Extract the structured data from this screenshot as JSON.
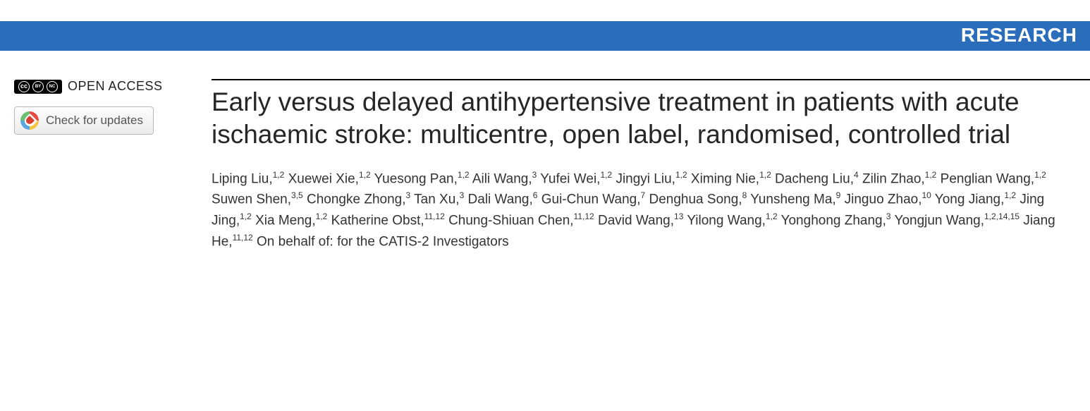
{
  "banner": {
    "label": "RESEARCH",
    "bg": "#2a6ebb",
    "fg": "#ffffff"
  },
  "sidebar": {
    "open_access_label": "OPEN ACCESS",
    "cc_glyphs": [
      "cc",
      "BY",
      "NC"
    ],
    "updates_label": "Check for updates"
  },
  "article": {
    "title": "Early versus delayed antihypertensive treatment in patients with acute ischaemic stroke: multicentre, open label, randomised, controlled trial",
    "authors": [
      {
        "name": "Liping Liu",
        "affil": "1,2"
      },
      {
        "name": "Xuewei Xie",
        "affil": "1,2"
      },
      {
        "name": "Yuesong Pan",
        "affil": "1,2"
      },
      {
        "name": "Aili Wang",
        "affil": "3"
      },
      {
        "name": "Yufei Wei",
        "affil": "1,2"
      },
      {
        "name": "Jingyi Liu",
        "affil": "1,2"
      },
      {
        "name": "Ximing Nie",
        "affil": "1,2"
      },
      {
        "name": "Dacheng Liu",
        "affil": "4"
      },
      {
        "name": "Zilin Zhao",
        "affil": "1,2"
      },
      {
        "name": "Penglian Wang",
        "affil": "1,2"
      },
      {
        "name": "Suwen Shen",
        "affil": "3,5"
      },
      {
        "name": "Chongke Zhong",
        "affil": "3"
      },
      {
        "name": "Tan Xu",
        "affil": "3"
      },
      {
        "name": "Dali Wang",
        "affil": "6"
      },
      {
        "name": "Gui-Chun Wang",
        "affil": "7"
      },
      {
        "name": "Denghua Song",
        "affil": "8"
      },
      {
        "name": "Yunsheng Ma",
        "affil": "9"
      },
      {
        "name": "Jinguo Zhao",
        "affil": "10"
      },
      {
        "name": "Yong Jiang",
        "affil": "1,2"
      },
      {
        "name": "Jing Jing",
        "affil": "1,2"
      },
      {
        "name": "Xia Meng",
        "affil": "1,2"
      },
      {
        "name": "Katherine Obst",
        "affil": "11,12"
      },
      {
        "name": "Chung-Shiuan Chen",
        "affil": "11,12"
      },
      {
        "name": "David Wang",
        "affil": "13"
      },
      {
        "name": "Yilong Wang",
        "affil": "1,2"
      },
      {
        "name": "Yonghong Zhang",
        "affil": "3"
      },
      {
        "name": "Yongjun Wang",
        "affil": "1,2,14,15"
      },
      {
        "name": "Jiang He",
        "affil": "11,12"
      }
    ],
    "on_behalf": "On behalf of: for the CATIS-2 Investigators"
  }
}
